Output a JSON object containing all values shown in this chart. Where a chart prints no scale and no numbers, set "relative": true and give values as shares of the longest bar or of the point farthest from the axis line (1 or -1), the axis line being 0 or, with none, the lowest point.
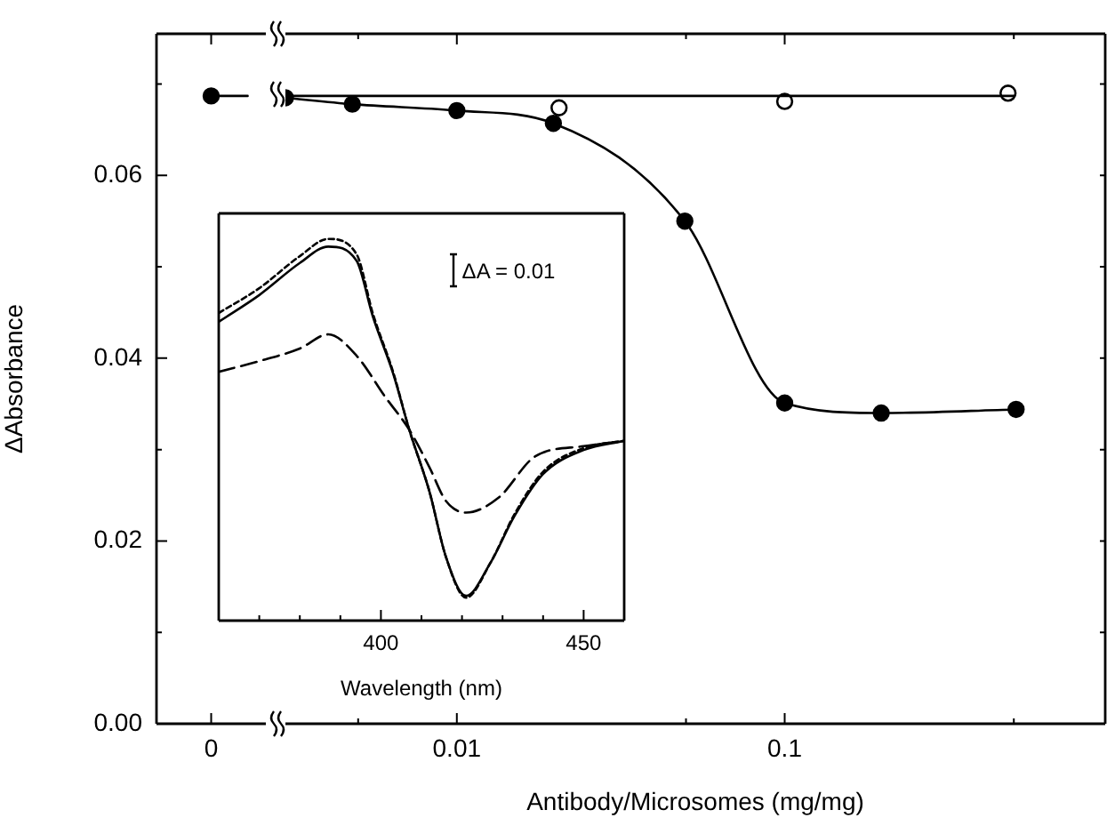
{
  "chart_data": [
    {
      "type": "line",
      "ylabel": "ΔAbsorbance",
      "categories": [
        null,
        "0",
        null
      ],
      "ylim": [
        0,
        0.0755
      ],
      "yticks": [
        {
          "value": 0,
          "label": "0.00"
        },
        {
          "value": 0.01,
          "label": null
        },
        0.02,
        {
          "value": 0.03,
          "label": null
        },
        0.04,
        {
          "value": 0.05,
          "label": null
        },
        0.06,
        {
          "value": 0.07,
          "label": null
        }
      ],
      "grid": false,
      "legend": false,
      "series": [
        {
          "color": "#000000",
          "marker": "none",
          "values": [
            null,
            0.0687,
            0.0687
          ]
        },
        {
          "color": "#000000",
          "marker": "circle",
          "values": [
            null,
            0.0687,
            null
          ]
        }
      ]
    },
    {
      "type": "line",
      "xlabel": "Antibody/Microsomes (mg/mg)",
      "log": "x",
      "xlim": [
        0.003,
        0.95
      ],
      "xticks": [
        {
          "value": 0.005,
          "label": null
        },
        0.01,
        {
          "value": 0.05,
          "label": null
        },
        0.1,
        {
          "value": 0.5,
          "label": null
        }
      ],
      "ylim": [
        0,
        0.0755
      ],
      "yticks": [
        {
          "value": 0,
          "label": null
        },
        {
          "value": 0.01,
          "label": null
        },
        {
          "value": 0.02,
          "label": null
        },
        {
          "value": 0.03,
          "label": null
        },
        {
          "value": 0.04,
          "label": null
        },
        {
          "value": 0.05,
          "label": null
        },
        {
          "value": 0.06,
          "label": null
        },
        {
          "value": 0.07,
          "label": null
        }
      ],
      "tick_labels": "x",
      "grid": false,
      "legend": false,
      "series": [
        {
          "color": "#000000",
          "marker": "none",
          "x": [
            0.003,
            0.5
          ],
          "values": [
            0.0687,
            0.0687
          ]
        },
        {
          "color": "#000000",
          "marker": "circle",
          "x": [
            0.003,
            0.0048,
            0.01,
            0.0197,
            0.0496,
            0.1,
            0.197,
            0.508
          ],
          "values": [
            0.0685,
            0.0678,
            0.0671,
            0.0657,
            0.055,
            0.0351,
            0.034,
            0.0344
          ]
        },
        {
          "type": "scatter",
          "color": "#000000",
          "marker": "circle",
          "x": [
            0.0205,
            0.1,
            0.48
          ],
          "values": [
            0.0674,
            0.0681,
            0.069
          ]
        }
      ]
    },
    {
      "type": "line",
      "relative": true,
      "xlabel": "Wavelength (nm)",
      "xlim": [
        360,
        460
      ],
      "xticks": [
        {
          "value": 370,
          "label": null
        },
        {
          "value": 380,
          "label": null
        },
        {
          "value": 390,
          "label": null
        },
        400,
        {
          "value": 410,
          "label": null
        },
        {
          "value": 420,
          "label": null
        },
        {
          "value": 430,
          "label": null
        },
        {
          "value": 440,
          "label": null
        },
        450
      ],
      "tick_labels": "x",
      "grid": false,
      "legend": false,
      "annotations": [
        "ΔA = 0.01"
      ],
      "series": [
        {
          "color": "#000000",
          "line_style": "solid",
          "x": [
            360,
            370,
            380,
            387,
            394,
            398,
            403,
            407,
            412,
            416,
            421,
            427,
            433,
            440,
            450,
            460
          ],
          "values": [
            0.783,
            0.853,
            0.937,
            0.98,
            0.943,
            0.797,
            0.648,
            0.5,
            0.337,
            0.168,
            0.065,
            0.151,
            0.275,
            0.384,
            0.447,
            0.471
          ]
        },
        {
          "color": "#000000",
          "line_style": "dotted",
          "x": [
            360,
            370,
            380,
            387,
            394,
            398,
            403,
            407,
            412,
            416,
            421,
            427,
            433,
            440,
            450,
            460
          ],
          "values": [
            0.806,
            0.871,
            0.955,
            1,
            0.96,
            0.805,
            0.652,
            0.5,
            0.337,
            0.168,
            0.06,
            0.151,
            0.28,
            0.39,
            0.452,
            0.471
          ]
        },
        {
          "color": "#000000",
          "line_style": "dashed",
          "x": [
            360,
            370,
            380,
            387,
            394,
            401,
            407,
            412,
            416,
            421,
            429,
            438,
            450,
            460
          ],
          "values": [
            0.652,
            0.68,
            0.713,
            0.75,
            0.694,
            0.587,
            0.5,
            0.401,
            0.314,
            0.283,
            0.322,
            0.43,
            0.457,
            0.471
          ]
        }
      ]
    }
  ]
}
